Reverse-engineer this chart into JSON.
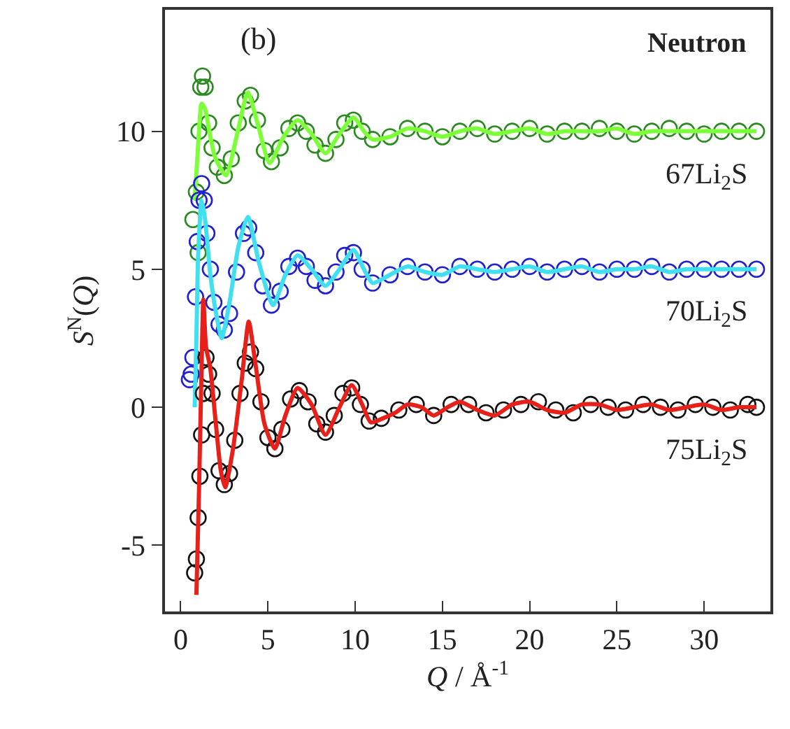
{
  "chart_data": {
    "type": "line",
    "xlabel": "Q / Å$^{-1}$",
    "ylabel": "S$^{N}$(Q)",
    "annotations": [
      "(b)",
      "Neutron"
    ],
    "xlim": [
      -0.9,
      33.8
    ],
    "ylim": [
      -7.4,
      14.4
    ],
    "xticks": [
      0,
      5,
      10,
      15,
      20,
      25,
      30
    ],
    "yticks": [
      -5,
      0,
      5,
      10
    ],
    "series": [
      {
        "name": "67Li$_{2}$S",
        "type": "scatter",
        "marker": "circle",
        "color": "#2a8a1f",
        "x": [
          0.7,
          0.9,
          1.0,
          1.05,
          1.15,
          1.25,
          1.4,
          1.6,
          1.8,
          2.1,
          2.5,
          2.9,
          3.3,
          3.7,
          4.0,
          4.4,
          4.8,
          5.2,
          5.7,
          6.2,
          6.7,
          7.2,
          7.7,
          8.3,
          8.9,
          9.4,
          9.9,
          10.4,
          11.0,
          12,
          13,
          14,
          15,
          16,
          17,
          18,
          19,
          20,
          21,
          22,
          23,
          24,
          25,
          26,
          27,
          28,
          29,
          30,
          31,
          32,
          33
        ],
        "values": [
          6.8,
          7.8,
          5.6,
          10,
          11.6,
          12.0,
          11.6,
          10.3,
          9.4,
          8.7,
          8.4,
          9.0,
          10.3,
          11.1,
          11.3,
          10.4,
          9.3,
          8.9,
          9.4,
          10.1,
          10.3,
          10.0,
          9.5,
          9.2,
          9.7,
          10.3,
          10.4,
          10.0,
          9.7,
          9.8,
          10.1,
          10.0,
          9.8,
          10.0,
          10.1,
          9.9,
          10.0,
          10.1,
          9.9,
          10.0,
          10.0,
          10.1,
          10.0,
          9.9,
          10.0,
          10.1,
          10.0,
          9.9,
          10.0,
          10.0,
          10.0
        ]
      },
      {
        "color": "#7dff3a",
        "x": [
          0.8,
          1.0,
          1.2,
          1.4,
          1.7,
          2.0,
          2.6,
          3.2,
          3.85,
          4.4,
          5.1,
          5.9,
          6.7,
          7.5,
          8.3,
          9.1,
          9.9,
          10.5,
          11.0,
          12,
          13,
          14,
          15,
          16,
          17,
          18,
          19,
          20,
          21,
          22,
          23,
          24,
          25,
          26,
          27,
          28,
          29,
          30,
          31,
          32,
          33
        ],
        "values": [
          7.5,
          9.5,
          11.0,
          10.8,
          9.8,
          9.0,
          8.4,
          9.8,
          11.4,
          10.3,
          8.85,
          9.8,
          10.4,
          9.9,
          9.2,
          9.9,
          10.5,
          10.0,
          9.7,
          9.8,
          10.1,
          10.0,
          9.8,
          10.0,
          10.1,
          9.9,
          10.0,
          10.1,
          9.9,
          10.0,
          10.0,
          10.0,
          10.1,
          9.9,
          10.0,
          10.0,
          10.0,
          10.0,
          10.0,
          10.0,
          10.0
        ]
      },
      {
        "name": "70Li$_{2}$S",
        "type": "scatter",
        "marker": "circle",
        "color": "#2020d0",
        "x": [
          0.5,
          0.6,
          0.7,
          0.85,
          0.95,
          1.05,
          1.2,
          1.35,
          1.5,
          1.7,
          1.9,
          2.2,
          2.5,
          2.8,
          3.2,
          3.6,
          3.9,
          4.3,
          4.7,
          5.2,
          5.7,
          6.2,
          6.7,
          7.2,
          7.7,
          8.3,
          8.9,
          9.4,
          9.9,
          10.4,
          11.0,
          12,
          13,
          14,
          15,
          16,
          17,
          18,
          19,
          20,
          21,
          22,
          23,
          24,
          25,
          26,
          27,
          28,
          29,
          30,
          31,
          32,
          33
        ],
        "values": [
          1.0,
          1.2,
          1.8,
          4.0,
          6.0,
          7.5,
          8.1,
          7.5,
          6.3,
          5.0,
          3.8,
          3.0,
          2.8,
          3.4,
          4.9,
          6.3,
          6.5,
          5.6,
          4.4,
          3.7,
          4.2,
          5.1,
          5.4,
          5.1,
          4.6,
          4.4,
          4.9,
          5.5,
          5.6,
          5.0,
          4.5,
          4.8,
          5.1,
          4.9,
          4.8,
          5.1,
          5.0,
          4.9,
          5.0,
          5.1,
          4.9,
          5.0,
          5.1,
          4.9,
          5.0,
          5.0,
          5.1,
          4.9,
          5.0,
          5.0,
          5.0,
          5.0,
          5.0
        ]
      },
      {
        "color": "#40e0f0",
        "x": [
          0.8,
          0.9,
          1.0,
          1.2,
          1.4,
          1.7,
          2.0,
          2.35,
          2.8,
          3.3,
          3.85,
          4.5,
          5.3,
          6.0,
          6.7,
          7.5,
          8.3,
          9.1,
          9.9,
          10.5,
          11.0,
          12,
          13,
          14,
          15,
          16,
          17,
          18,
          19,
          20,
          21,
          22,
          23,
          24,
          25,
          26,
          27,
          28,
          29,
          30,
          31,
          32,
          33
        ],
        "values": [
          0.0,
          2.5,
          5.5,
          7.5,
          6.8,
          4.8,
          3.5,
          2.5,
          3.8,
          5.8,
          6.9,
          5.2,
          3.7,
          4.8,
          5.5,
          5.0,
          4.4,
          5.0,
          5.7,
          5.0,
          4.5,
          4.8,
          5.1,
          4.9,
          4.8,
          5.1,
          5.0,
          4.9,
          5.0,
          5.1,
          4.9,
          5.0,
          5.1,
          4.9,
          5.0,
          5.0,
          5.1,
          4.9,
          5.0,
          5.0,
          5.0,
          5.0,
          5.0
        ]
      },
      {
        "name": "75Li$_{2}$S",
        "type": "scatter",
        "marker": "circle",
        "color": "#111111",
        "x": [
          0.8,
          0.9,
          1.0,
          1.1,
          1.2,
          1.3,
          1.45,
          1.6,
          1.8,
          2.0,
          2.2,
          2.5,
          2.8,
          3.1,
          3.4,
          3.7,
          4.0,
          4.3,
          4.6,
          5.0,
          5.4,
          5.8,
          6.3,
          6.8,
          7.3,
          7.8,
          8.3,
          8.8,
          9.3,
          9.8,
          10.3,
          10.8,
          11.5,
          12.5,
          13.5,
          14.5,
          15.5,
          16.5,
          17.5,
          18.5,
          19.5,
          20.5,
          21.5,
          22.5,
          23.5,
          24.5,
          25.5,
          26.5,
          27.5,
          28.5,
          29.5,
          30.5,
          31.5,
          32.5,
          33.0
        ],
        "values": [
          -6,
          -5.5,
          -4,
          -2.5,
          -1,
          0.5,
          1.8,
          1.2,
          0.5,
          -0.8,
          -2.3,
          -2.8,
          -2.4,
          -1.2,
          0.5,
          1.6,
          2.0,
          1.4,
          0.2,
          -1.1,
          -1.5,
          -0.8,
          0.3,
          0.6,
          0.2,
          -0.6,
          -0.9,
          -0.3,
          0.5,
          0.7,
          0.1,
          -0.5,
          -0.4,
          -0.1,
          0.1,
          -0.3,
          0.1,
          0.1,
          -0.2,
          -0.1,
          0.1,
          0.2,
          -0.1,
          -0.2,
          0.1,
          0.0,
          -0.1,
          0.1,
          0.0,
          -0.1,
          0.1,
          0.0,
          -0.1,
          0.1,
          0.0
        ]
      },
      {
        "color": "#e8201a",
        "x": [
          0.9,
          1.05,
          1.2,
          1.3,
          1.45,
          1.7,
          2.0,
          2.3,
          2.55,
          3.0,
          3.5,
          3.9,
          4.3,
          4.8,
          5.4,
          6.0,
          6.7,
          7.5,
          8.3,
          9.1,
          9.8,
          10.4,
          10.9,
          11.6,
          12.3,
          13.0,
          13.8,
          14.5,
          15.3,
          16.0,
          17.0,
          18.0,
          19.0,
          20.0,
          21.0,
          22.0,
          23.0,
          24.0,
          25.0,
          26.0,
          27.0,
          28.0,
          29.0,
          30.0,
          31.0,
          32.0,
          33.0
        ],
        "values": [
          -6.8,
          -3,
          1.5,
          3.9,
          2.2,
          1.4,
          -0.5,
          -2.3,
          -2.9,
          -1.5,
          1.0,
          3.1,
          1.5,
          -0.6,
          -1.5,
          -0.3,
          0.7,
          0.1,
          -1.0,
          0.0,
          0.8,
          0.1,
          -0.55,
          -0.4,
          -0.2,
          0.1,
          0.0,
          -0.3,
          0.0,
          0.2,
          -0.1,
          -0.3,
          0.1,
          0.2,
          -0.1,
          -0.2,
          0.1,
          0.1,
          -0.1,
          0.0,
          0.1,
          -0.1,
          0.0,
          0.1,
          -0.1,
          0.0,
          0.0
        ]
      }
    ]
  }
}
